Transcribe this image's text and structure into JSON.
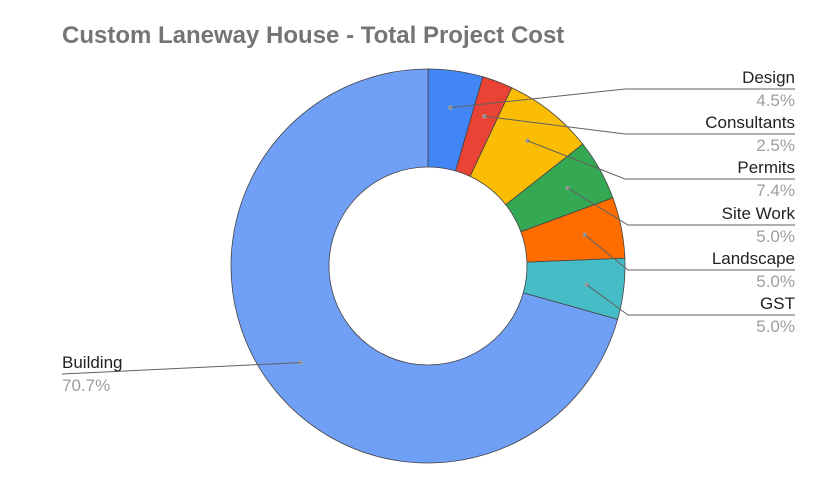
{
  "chart_data": {
    "type": "pie",
    "title": "Custom Laneway House - Total Project Cost",
    "donut": true,
    "legend": "labels",
    "slices": [
      {
        "label": "Design",
        "value": 4.5,
        "display": "4.5%",
        "color": "#4285f4"
      },
      {
        "label": "Consultants",
        "value": 2.5,
        "display": "2.5%",
        "color": "#ea4335"
      },
      {
        "label": "Permits",
        "value": 7.4,
        "display": "7.4%",
        "color": "#fbbc04"
      },
      {
        "label": "Site Work",
        "value": 5.0,
        "display": "5.0%",
        "color": "#34a853"
      },
      {
        "label": "Landscape",
        "value": 5.0,
        "display": "5.0%",
        "color": "#ff6d01"
      },
      {
        "label": "GST",
        "value": 5.0,
        "display": "5.0%",
        "color": "#46bdc6"
      },
      {
        "label": "Building",
        "value": 70.7,
        "display": "70.7%",
        "color": "#709ff6"
      }
    ]
  }
}
